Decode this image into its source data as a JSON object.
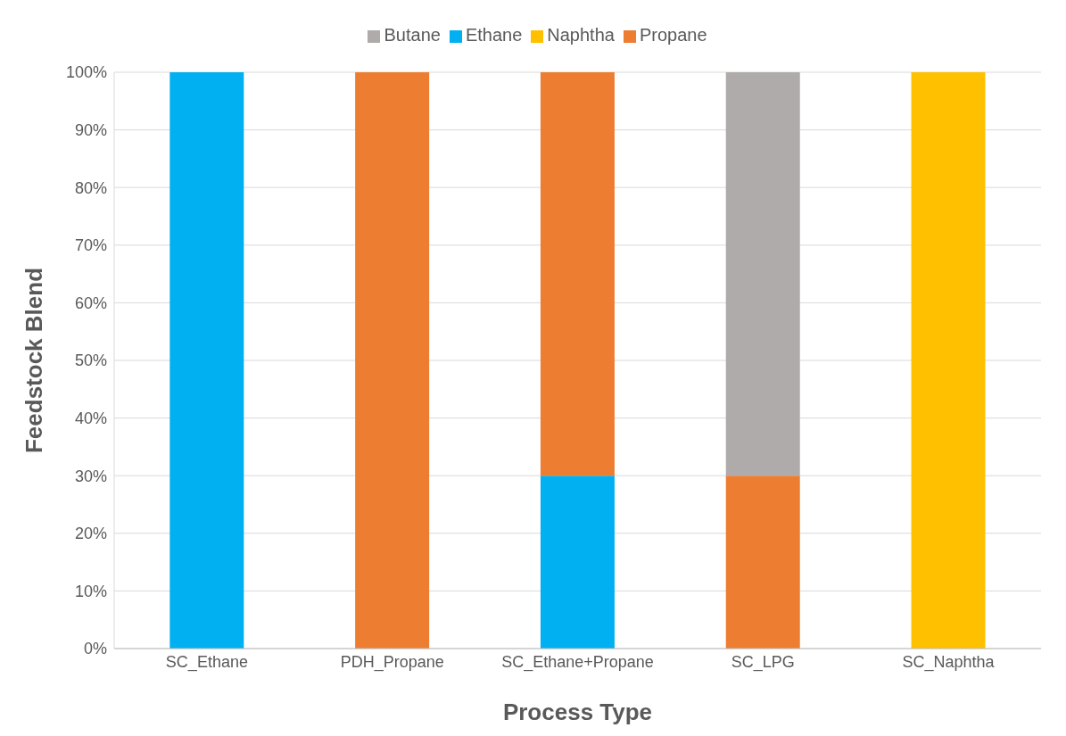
{
  "chart_data": {
    "type": "bar",
    "stacked": true,
    "xlabel": "Process Type",
    "ylabel": "Feedstock Blend",
    "categories": [
      "SC_Ethane",
      "PDH_Propane",
      "SC_Ethane+Propane",
      "SC_LPG",
      "SC_Naphtha"
    ],
    "series": [
      {
        "name": "Ethane",
        "color": "#00b0f0",
        "values": [
          100,
          0,
          30,
          0,
          0
        ]
      },
      {
        "name": "Propane",
        "color": "#ed7d31",
        "values": [
          0,
          100,
          70,
          30,
          0
        ]
      },
      {
        "name": "Butane",
        "color": "#afabab",
        "values": [
          0,
          0,
          0,
          70,
          0
        ]
      },
      {
        "name": "Naphtha",
        "color": "#ffc000",
        "values": [
          0,
          0,
          0,
          0,
          100
        ]
      }
    ],
    "ylim": [
      0,
      100
    ],
    "yticks": [
      {
        "value": 0,
        "label": "0%"
      },
      {
        "value": 10,
        "label": "10%"
      },
      {
        "value": 20,
        "label": "20%"
      },
      {
        "value": 30,
        "label": "30%"
      },
      {
        "value": 40,
        "label": "40%"
      },
      {
        "value": 50,
        "label": "50%"
      },
      {
        "value": 60,
        "label": "60%"
      },
      {
        "value": 70,
        "label": "70%"
      },
      {
        "value": 80,
        "label": "80%"
      },
      {
        "value": 90,
        "label": "90%"
      },
      {
        "value": 100,
        "label": "100%"
      }
    ],
    "grid": "y",
    "legend": "top"
  }
}
